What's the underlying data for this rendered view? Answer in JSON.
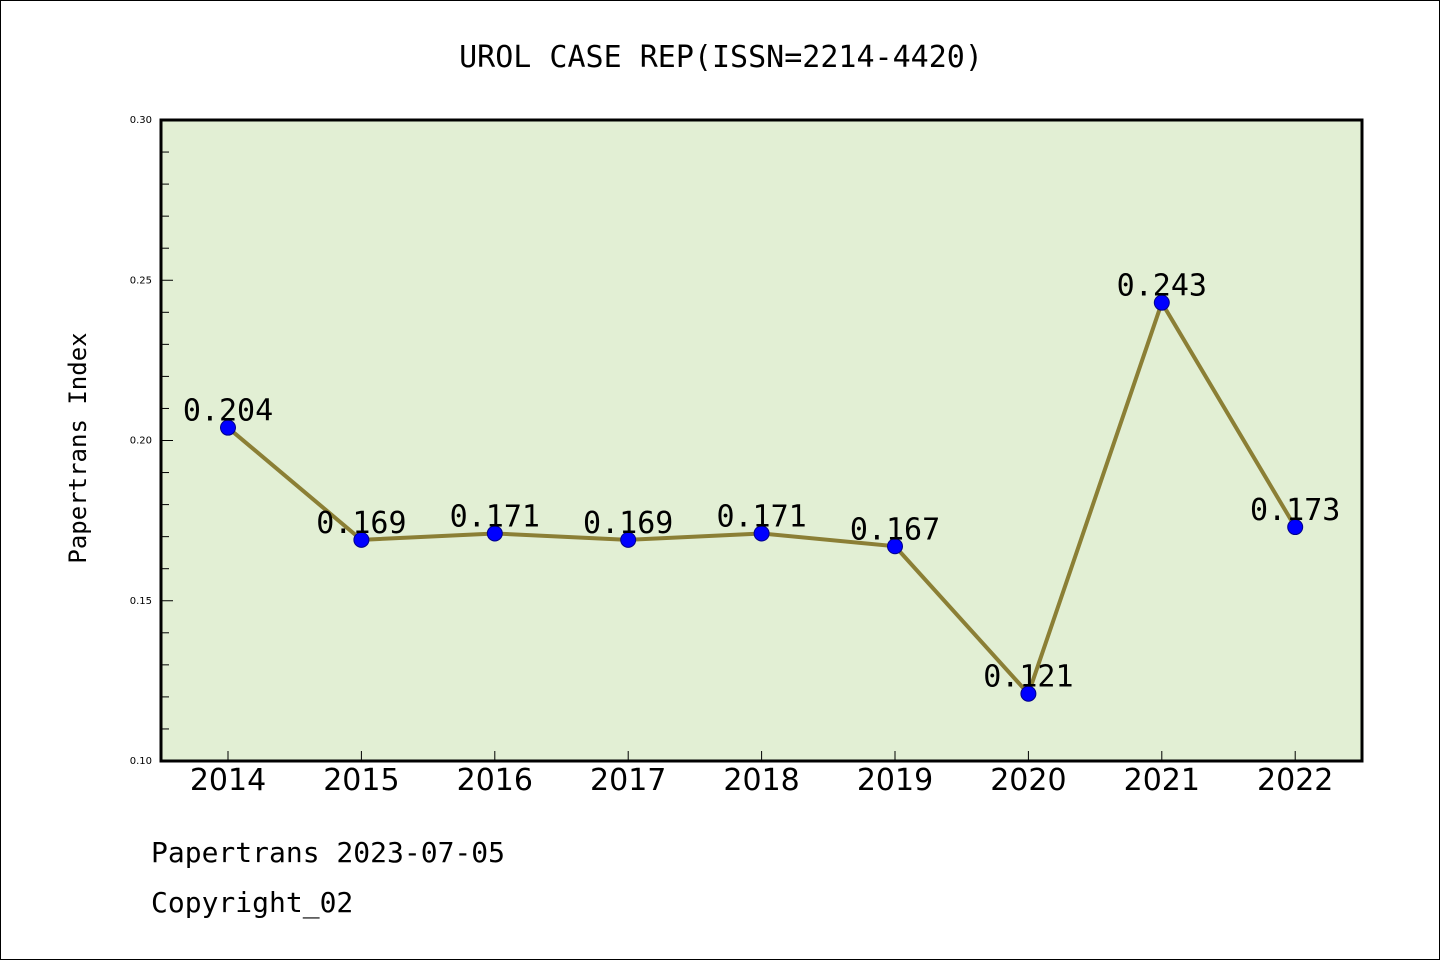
{
  "chart_data": {
    "type": "line",
    "title": "UROL CASE REP(ISSN=2214-4420)",
    "xlabel": "",
    "ylabel": "Papertrans Index",
    "categories": [
      "2014",
      "2015",
      "2016",
      "2017",
      "2018",
      "2019",
      "2020",
      "2021",
      "2022"
    ],
    "series": [
      {
        "values": [
          0.204,
          0.169,
          0.171,
          0.169,
          0.171,
          0.167,
          0.121,
          0.243,
          0.173
        ],
        "labels": [
          "0.204",
          "0.169",
          "0.171",
          "0.169",
          "0.171",
          "0.167",
          "0.121",
          "0.243",
          "0.173"
        ]
      }
    ],
    "ylim": [
      0.1,
      0.3
    ],
    "yticks": [
      "0.10",
      "0.15",
      "0.20",
      "0.25",
      "0.30"
    ],
    "grid": false,
    "colors": {
      "plot_background": "#e2efd4",
      "line": "#8b7f35",
      "marker": "#0000ff"
    }
  },
  "footer": {
    "line1": "Papertrans 2023-07-05",
    "line2": "Copyright_02"
  }
}
